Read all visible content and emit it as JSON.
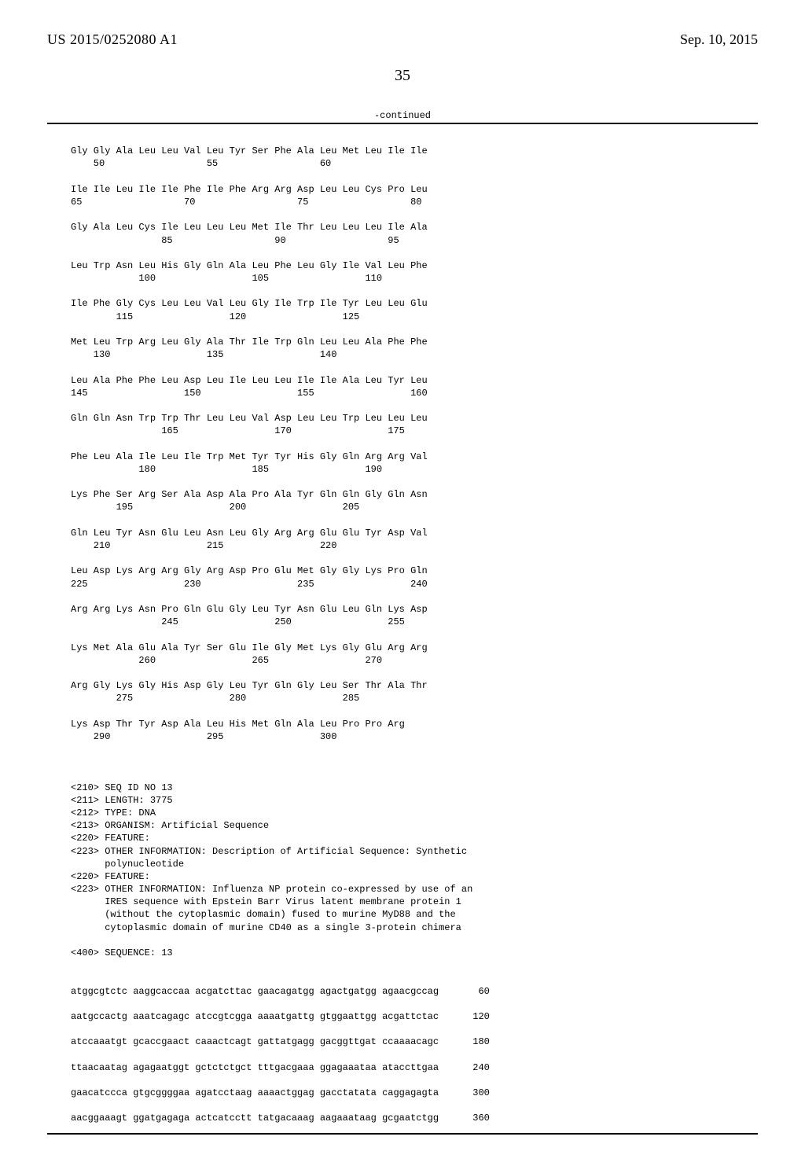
{
  "header": {
    "pub_number": "US 2015/0252080 A1",
    "pub_date": "Sep. 10, 2015",
    "page_number": "35",
    "continued_label": "-continued"
  },
  "protein_rows": [
    {
      "aa": "Gly Gly Ala Leu Leu Val Leu Tyr Ser Phe Ala Leu Met Leu Ile Ile",
      "nums": "    50                  55                  60"
    },
    {
      "aa": "Ile Ile Leu Ile Ile Phe Ile Phe Arg Arg Asp Leu Leu Cys Pro Leu",
      "nums": "65                  70                  75                  80"
    },
    {
      "aa": "Gly Ala Leu Cys Ile Leu Leu Leu Met Ile Thr Leu Leu Leu Ile Ala",
      "nums": "                85                  90                  95"
    },
    {
      "aa": "Leu Trp Asn Leu His Gly Gln Ala Leu Phe Leu Gly Ile Val Leu Phe",
      "nums": "            100                 105                 110"
    },
    {
      "aa": "Ile Phe Gly Cys Leu Leu Val Leu Gly Ile Trp Ile Tyr Leu Leu Glu",
      "nums": "        115                 120                 125"
    },
    {
      "aa": "Met Leu Trp Arg Leu Gly Ala Thr Ile Trp Gln Leu Leu Ala Phe Phe",
      "nums": "    130                 135                 140"
    },
    {
      "aa": "Leu Ala Phe Phe Leu Asp Leu Ile Leu Leu Ile Ile Ala Leu Tyr Leu",
      "nums": "145                 150                 155                 160"
    },
    {
      "aa": "Gln Gln Asn Trp Trp Thr Leu Leu Val Asp Leu Leu Trp Leu Leu Leu",
      "nums": "                165                 170                 175"
    },
    {
      "aa": "Phe Leu Ala Ile Leu Ile Trp Met Tyr Tyr His Gly Gln Arg Arg Val",
      "nums": "            180                 185                 190"
    },
    {
      "aa": "Lys Phe Ser Arg Ser Ala Asp Ala Pro Ala Tyr Gln Gln Gly Gln Asn",
      "nums": "        195                 200                 205"
    },
    {
      "aa": "Gln Leu Tyr Asn Glu Leu Asn Leu Gly Arg Arg Glu Glu Tyr Asp Val",
      "nums": "    210                 215                 220"
    },
    {
      "aa": "Leu Asp Lys Arg Arg Gly Arg Asp Pro Glu Met Gly Gly Lys Pro Gln",
      "nums": "225                 230                 235                 240"
    },
    {
      "aa": "Arg Arg Lys Asn Pro Gln Glu Gly Leu Tyr Asn Glu Leu Gln Lys Asp",
      "nums": "                245                 250                 255"
    },
    {
      "aa": "Lys Met Ala Glu Ala Tyr Ser Glu Ile Gly Met Lys Gly Glu Arg Arg",
      "nums": "            260                 265                 270"
    },
    {
      "aa": "Arg Gly Lys Gly His Asp Gly Leu Tyr Gln Gly Leu Ser Thr Ala Thr",
      "nums": "        275                 280                 285"
    },
    {
      "aa": "Lys Asp Thr Tyr Asp Ala Leu His Met Gln Ala Leu Pro Pro Arg",
      "nums": "    290                 295                 300"
    }
  ],
  "meta_lines": [
    "<210> SEQ ID NO 13",
    "<211> LENGTH: 3775",
    "<212> TYPE: DNA",
    "<213> ORGANISM: Artificial Sequence",
    "<220> FEATURE:",
    "<223> OTHER INFORMATION: Description of Artificial Sequence: Synthetic",
    "      polynucleotide",
    "<220> FEATURE:",
    "<223> OTHER INFORMATION: Influenza NP protein co-expressed by use of an",
    "      IRES sequence with Epstein Barr Virus latent membrane protein 1",
    "      (without the cytoplasmic domain) fused to murine MyD88 and the",
    "      cytoplasmic domain of murine CD40 as a single 3-protein chimera",
    "",
    "<400> SEQUENCE: 13"
  ],
  "dna_rows": [
    {
      "seq": "atggcgtctc aaggcaccaa acgatcttac gaacagatgg agactgatgg agaacgccag",
      "num": "60"
    },
    {
      "seq": "aatgccactg aaatcagagc atccgtcgga aaaatgattg gtggaattgg acgattctac",
      "num": "120"
    },
    {
      "seq": "atccaaatgt gcaccgaact caaactcagt gattatgagg gacggttgat ccaaaacagc",
      "num": "180"
    },
    {
      "seq": "ttaacaatag agagaatggt gctctctgct tttgacgaaa ggagaaataa ataccttgaa",
      "num": "240"
    },
    {
      "seq": "gaacatccca gtgcggggaa agatcctaag aaaactggag gacctatata caggagagta",
      "num": "300"
    },
    {
      "seq": "aacggaaagt ggatgagaga actcatcctt tatgacaaag aagaaataag gcgaatctgg",
      "num": "360"
    }
  ]
}
